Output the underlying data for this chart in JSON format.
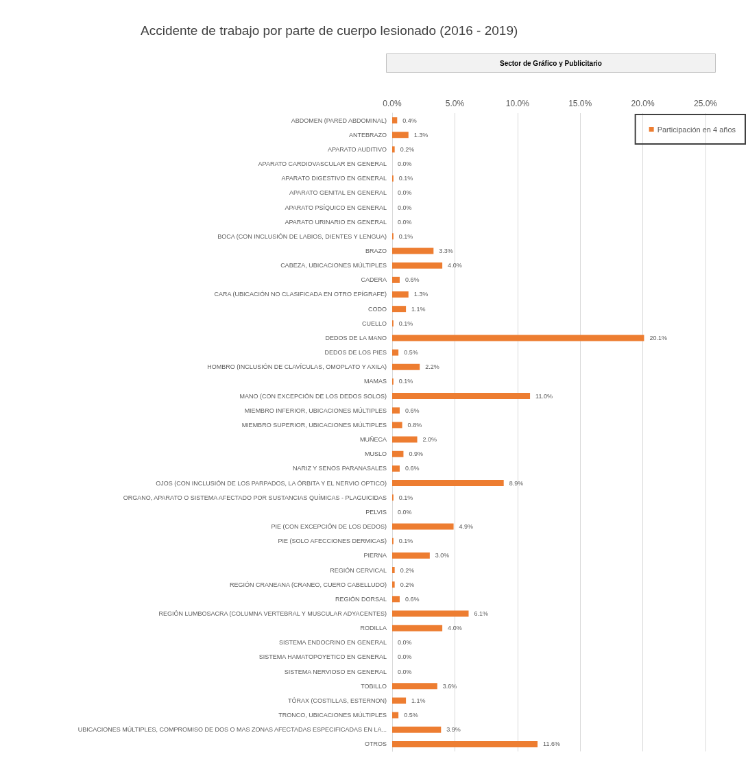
{
  "chart_data": {
    "type": "bar",
    "orientation": "horizontal",
    "title": "Accidente de trabajo por parte de cuerpo lesionado (2016 - 2019)",
    "subtitle": "Sector de Gráfico y Publicitario",
    "categories": [
      "ABDOMEN (PARED ABDOMINAL)",
      "ANTEBRAZO",
      "APARATO AUDITIVO",
      "APARATO CARDIOVASCULAR EN GENERAL",
      "APARATO DIGESTIVO EN GENERAL",
      "APARATO GENITAL EN GENERAL",
      "APARATO PSÍQUICO EN GENERAL",
      "APARATO URINARIO EN GENERAL",
      "BOCA (CON INCLUSIÓN DE LABIOS, DIENTES Y LENGUA)",
      "BRAZO",
      "CABEZA, UBICACIONES MÚLTIPLES",
      "CADERA",
      "CARA (UBICACIÓN NO CLASIFICADA EN OTRO EPÍGRAFE)",
      "CODO",
      "CUELLO",
      "DEDOS DE LA MANO",
      "DEDOS DE LOS PIES",
      "HOMBRO (INCLUSIÓN DE CLAVÍCULAS, OMOPLATO Y AXILA)",
      "MAMAS",
      "MANO (CON EXCEPCIÓN DE LOS DEDOS SOLOS)",
      "MIEMBRO INFERIOR, UBICACIONES MÚLTIPLES",
      "MIEMBRO SUPERIOR, UBICACIONES MÚLTIPLES",
      "MUÑECA",
      "MUSLO",
      "NARIZ Y SENOS PARANASALES",
      "OJOS (CON INCLUSIÓN DE LOS PARPADOS, LA ÓRBITA Y EL NERVIO OPTICO)",
      "ORGANO, APARATO O SISTEMA AFECTADO POR SUSTANCIAS QUÍMICAS - PLAGUICIDAS",
      "PELVIS",
      "PIE (CON EXCEPCIÓN DE LOS DEDOS)",
      "PIE (SOLO AFECCIONES DERMICAS)",
      "PIERNA",
      "REGIÓN CERVICAL",
      "REGIÓN CRANEANA (CRANEO, CUERO CABELLUDO)",
      "REGIÓN DORSAL",
      "REGIÓN LUMBOSACRA (COLUMNA VERTEBRAL Y MUSCULAR ADYACENTES)",
      "RODILLA",
      "SISTEMA ENDOCRINO EN GENERAL",
      "SISTEMA HAMATOPOYETICO EN GENERAL",
      "SISTEMA NERVIOSO EN GENERAL",
      "TOBILLO",
      "TÓRAX (COSTILLAS, ESTERNON)",
      "TRONCO, UBICACIONES MÚLTIPLES",
      "UBICACIONES MÚLTIPLES, COMPROMISO DE DOS O MAS ZONAS AFECTADAS ESPECIFICADAS EN LA...",
      "OTROS"
    ],
    "series": [
      {
        "name": "Participación en 4 años",
        "color": "#ed7d31",
        "values": [
          0.4,
          1.3,
          0.2,
          0.0,
          0.1,
          0.0,
          0.0,
          0.0,
          0.1,
          3.3,
          4.0,
          0.6,
          1.3,
          1.1,
          0.1,
          20.1,
          0.5,
          2.2,
          0.1,
          11.0,
          0.6,
          0.8,
          2.0,
          0.9,
          0.6,
          8.9,
          0.1,
          0.0,
          4.9,
          0.1,
          3.0,
          0.2,
          0.2,
          0.6,
          6.1,
          4.0,
          0.0,
          0.0,
          0.0,
          3.6,
          1.1,
          0.5,
          3.9,
          11.6
        ],
        "value_labels": [
          "0.4%",
          "1.3%",
          "0.2%",
          "0.0%",
          "0.1%",
          "0.0%",
          "0.0%",
          "0.0%",
          "0.1%",
          "3.3%",
          "4.0%",
          "0.6%",
          "1.3%",
          "1.1%",
          "0.1%",
          "20.1%",
          "0.5%",
          "2.2%",
          "0.1%",
          "11.0%",
          "0.6%",
          "0.8%",
          "2.0%",
          "0.9%",
          "0.6%",
          "8.9%",
          "0.1%",
          "0.0%",
          "4.9%",
          "0.1%",
          "3.0%",
          "0.2%",
          "0.2%",
          "0.6%",
          "6.1%",
          "4.0%",
          "0.0%",
          "0.0%",
          "0.0%",
          "3.6%",
          "1.1%",
          "0.5%",
          "3.9%",
          "11.6%"
        ]
      }
    ],
    "xlim": [
      0,
      25
    ],
    "xticks": [
      {
        "value": 0,
        "label": "0.0%"
      },
      {
        "value": 5,
        "label": "5.0%"
      },
      {
        "value": 10,
        "label": "10.0%"
      },
      {
        "value": 15,
        "label": "15.0%"
      },
      {
        "value": 20,
        "label": "20.0%"
      },
      {
        "value": 25,
        "label": "25.0%"
      }
    ],
    "grid": "x",
    "legend": "top right"
  }
}
